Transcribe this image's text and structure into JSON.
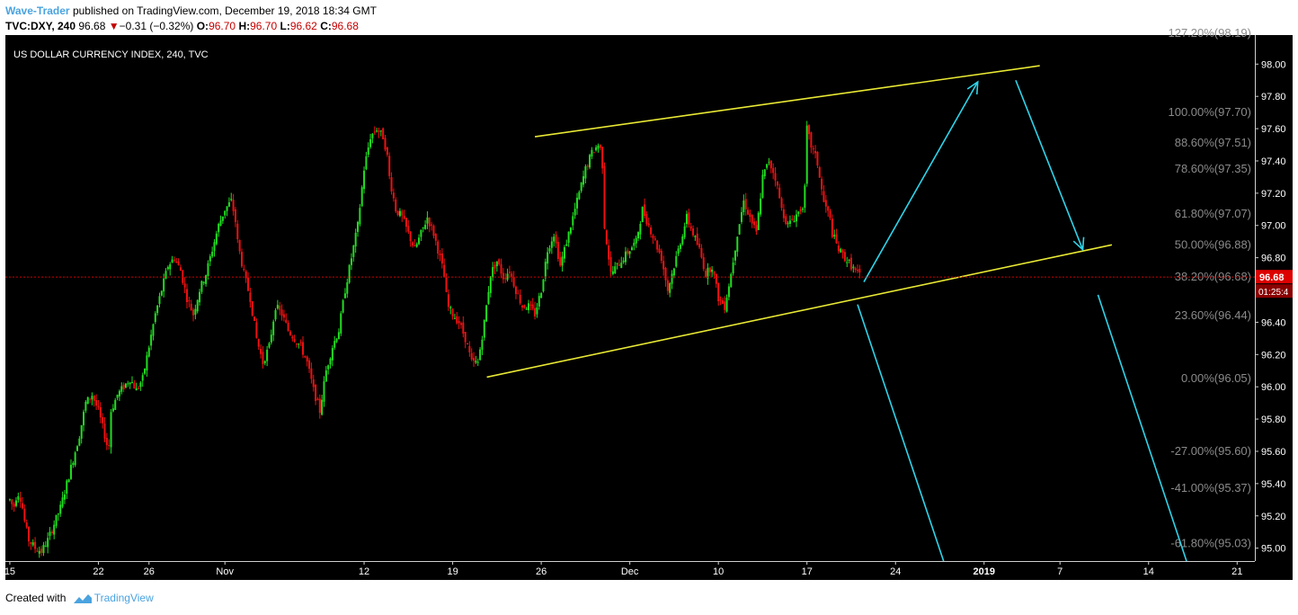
{
  "header": {
    "author": "Wave-Trader",
    "published": "published on TradingView.com, December 19, 2018 18:34 GMT",
    "symbol": "TVC:DXY, 240",
    "last": "96.68",
    "change_arrow": "▼",
    "change": "−0.31 (−0.32%)",
    "o_label": "O:",
    "o": "96.70",
    "h_label": "H:",
    "h": "96.70",
    "l_label": "L:",
    "l": "96.62",
    "c_label": "C:",
    "c": "96.68"
  },
  "footer": {
    "created": "Created with",
    "brand": "TradingView",
    "logo_icon": "tradingview-logo-icon"
  },
  "colors": {
    "up": "#22dd22",
    "down": "#ee1111",
    "channel": "#e9e934",
    "arrow": "#2ed4ea",
    "price_line": "#cc0000",
    "price_tag": "#dd0000"
  },
  "chart_data": {
    "type": "candlestick",
    "title": "US DOLLAR CURRENCY INDEX, 240, TVC",
    "ylim": [
      94.92,
      98.18
    ],
    "y_ticks": [
      "98.00",
      "97.80",
      "97.60",
      "97.40",
      "97.20",
      "97.00",
      "96.80",
      "96.60",
      "96.40",
      "96.20",
      "96.00",
      "95.80",
      "95.60",
      "95.40",
      "95.20",
      "95.00"
    ],
    "x_ticks": [
      {
        "label": "15",
        "t": 0
      },
      {
        "label": "22",
        "t": 7
      },
      {
        "label": "26",
        "t": 11
      },
      {
        "label": "Nov",
        "t": 17
      },
      {
        "label": "12",
        "t": 28
      },
      {
        "label": "19",
        "t": 35
      },
      {
        "label": "26",
        "t": 42
      },
      {
        "label": "Dec",
        "t": 49
      },
      {
        "label": "10",
        "t": 56
      },
      {
        "label": "17",
        "t": 63
      },
      {
        "label": "24",
        "t": 70
      },
      {
        "label": "2019",
        "t": 77,
        "bold": true
      },
      {
        "label": "7",
        "t": 83
      },
      {
        "label": "14",
        "t": 90
      },
      {
        "label": "21",
        "t": 97
      }
    ],
    "t_range": [
      -0.35,
      98.4
    ],
    "last_price": "96.68",
    "countdown": "01:25:4",
    "fib_levels": [
      {
        "label": "127.20%(98.19)",
        "value": 98.19
      },
      {
        "label": "100.00%(97.70)",
        "value": 97.7
      },
      {
        "label": "88.60%(97.51)",
        "value": 97.51
      },
      {
        "label": "78.60%(97.35)",
        "value": 97.35
      },
      {
        "label": "61.80%(97.07)",
        "value": 97.07
      },
      {
        "label": "50.00%(96.88)",
        "value": 96.88
      },
      {
        "label": "38.20%(96.68)",
        "value": 96.68
      },
      {
        "label": "23.60%(96.44)",
        "value": 96.44
      },
      {
        "label": "0.00%(96.05)",
        "value": 96.05
      },
      {
        "label": "-27.00%(95.60)",
        "value": 95.6
      },
      {
        "label": "-41.00%(95.37)",
        "value": 95.37
      },
      {
        "label": "-61.80%(95.03)",
        "value": 95.03
      }
    ],
    "channel_lines": [
      {
        "t1": 41.5,
        "v1": 97.55,
        "t2": 81.4,
        "v2": 97.99
      },
      {
        "t1": 37.7,
        "v1": 96.06,
        "t2": 87.1,
        "v2": 96.88
      }
    ],
    "arrows": [
      {
        "t1": 67.5,
        "v1": 96.65,
        "t2": 76.5,
        "v2": 97.89,
        "head": true
      },
      {
        "t1": 79.5,
        "v1": 97.9,
        "t2": 84.8,
        "v2": 96.85,
        "head": true
      },
      {
        "t1": 67.0,
        "v1": 96.51,
        "t2": 73.8,
        "v2": 94.92,
        "head": false
      },
      {
        "t1": 86.0,
        "v1": 96.57,
        "t2": 93.0,
        "v2": 94.92,
        "head": false
      }
    ],
    "path": [
      [
        0,
        95.3
      ],
      [
        0.3,
        95.25
      ],
      [
        0.6,
        95.35
      ],
      [
        0.9,
        95.3
      ],
      [
        1.2,
        95.15
      ],
      [
        1.5,
        95.05
      ],
      [
        2,
        95.0
      ],
      [
        2.5,
        94.98
      ],
      [
        3,
        95.05
      ],
      [
        3.5,
        95.15
      ],
      [
        4,
        95.25
      ],
      [
        4.5,
        95.4
      ],
      [
        5,
        95.55
      ],
      [
        5.5,
        95.7
      ],
      [
        6,
        95.9
      ],
      [
        6.5,
        95.95
      ],
      [
        7,
        95.85
      ],
      [
        7.5,
        95.7
      ],
      [
        7.8,
        95.6
      ],
      [
        8,
        95.85
      ],
      [
        8.5,
        95.95
      ],
      [
        9,
        96.0
      ],
      [
        9.5,
        96.05
      ],
      [
        10,
        95.98
      ],
      [
        10.5,
        96.05
      ],
      [
        11,
        96.25
      ],
      [
        11.5,
        96.45
      ],
      [
        12,
        96.6
      ],
      [
        12.5,
        96.75
      ],
      [
        13,
        96.8
      ],
      [
        13.5,
        96.72
      ],
      [
        14,
        96.55
      ],
      [
        14.5,
        96.45
      ],
      [
        15,
        96.6
      ],
      [
        15.5,
        96.7
      ],
      [
        16,
        96.85
      ],
      [
        16.5,
        97.0
      ],
      [
        17,
        97.1
      ],
      [
        17.5,
        97.15
      ],
      [
        17.8,
        97.05
      ],
      [
        18,
        96.9
      ],
      [
        18.5,
        96.7
      ],
      [
        19,
        96.55
      ],
      [
        19.5,
        96.3
      ],
      [
        20,
        96.15
      ],
      [
        20.5,
        96.25
      ],
      [
        21,
        96.5
      ],
      [
        21.5,
        96.45
      ],
      [
        22,
        96.35
      ],
      [
        22.5,
        96.3
      ],
      [
        23,
        96.25
      ],
      [
        23.5,
        96.15
      ],
      [
        24,
        95.98
      ],
      [
        24.5,
        95.85
      ],
      [
        25,
        96.1
      ],
      [
        25.5,
        96.25
      ],
      [
        26,
        96.35
      ],
      [
        26.5,
        96.6
      ],
      [
        27,
        96.8
      ],
      [
        27.5,
        97.0
      ],
      [
        28,
        97.35
      ],
      [
        28.5,
        97.55
      ],
      [
        29,
        97.6
      ],
      [
        29.5,
        97.55
      ],
      [
        29.8,
        97.45
      ],
      [
        30,
        97.3
      ],
      [
        30.5,
        97.1
      ],
      [
        31,
        97.05
      ],
      [
        31.5,
        96.95
      ],
      [
        32,
        96.85
      ],
      [
        32.5,
        96.95
      ],
      [
        33,
        97.05
      ],
      [
        33.5,
        96.95
      ],
      [
        34,
        96.8
      ],
      [
        34.3,
        96.7
      ],
      [
        34.6,
        96.5
      ],
      [
        35,
        96.45
      ],
      [
        35.5,
        96.4
      ],
      [
        36,
        96.3
      ],
      [
        36.5,
        96.15
      ],
      [
        37,
        96.15
      ],
      [
        37.5,
        96.4
      ],
      [
        38,
        96.7
      ],
      [
        38.5,
        96.78
      ],
      [
        39,
        96.68
      ],
      [
        39.5,
        96.72
      ],
      [
        40,
        96.6
      ],
      [
        40.5,
        96.5
      ],
      [
        41,
        96.5
      ],
      [
        41.5,
        96.45
      ],
      [
        42,
        96.6
      ],
      [
        42.5,
        96.85
      ],
      [
        43,
        96.95
      ],
      [
        43.5,
        96.75
      ],
      [
        44,
        96.9
      ],
      [
        44.5,
        97.05
      ],
      [
        45,
        97.2
      ],
      [
        45.5,
        97.35
      ],
      [
        46,
        97.45
      ],
      [
        46.5,
        97.5
      ],
      [
        46.8,
        97.45
      ],
      [
        47,
        97.0
      ],
      [
        47.5,
        96.7
      ],
      [
        48,
        96.75
      ],
      [
        48.5,
        96.8
      ],
      [
        49,
        96.85
      ],
      [
        49.5,
        96.9
      ],
      [
        50,
        97.1
      ],
      [
        50.5,
        97.0
      ],
      [
        51,
        96.9
      ],
      [
        51.5,
        96.8
      ],
      [
        52,
        96.6
      ],
      [
        52.5,
        96.75
      ],
      [
        53,
        96.9
      ],
      [
        53.5,
        97.05
      ],
      [
        54,
        96.95
      ],
      [
        54.5,
        96.85
      ],
      [
        55,
        96.7
      ],
      [
        55.5,
        96.75
      ],
      [
        56,
        96.55
      ],
      [
        56.5,
        96.5
      ],
      [
        57,
        96.7
      ],
      [
        57.5,
        96.95
      ],
      [
        58,
        97.15
      ],
      [
        58.5,
        97.05
      ],
      [
        59,
        96.95
      ],
      [
        59.5,
        97.3
      ],
      [
        60,
        97.4
      ],
      [
        60.5,
        97.3
      ],
      [
        61,
        97.1
      ],
      [
        61.5,
        97.0
      ],
      [
        62,
        97.05
      ],
      [
        62.5,
        97.1
      ],
      [
        62.8,
        97.15
      ],
      [
        63,
        97.6
      ],
      [
        63.3,
        97.5
      ],
      [
        63.8,
        97.4
      ],
      [
        64,
        97.3
      ],
      [
        64.3,
        97.15
      ],
      [
        64.8,
        97.05
      ],
      [
        65,
        96.95
      ],
      [
        65.5,
        96.85
      ],
      [
        66,
        96.8
      ],
      [
        66.5,
        96.75
      ],
      [
        67,
        96.7
      ],
      [
        67.3,
        96.68
      ]
    ]
  }
}
